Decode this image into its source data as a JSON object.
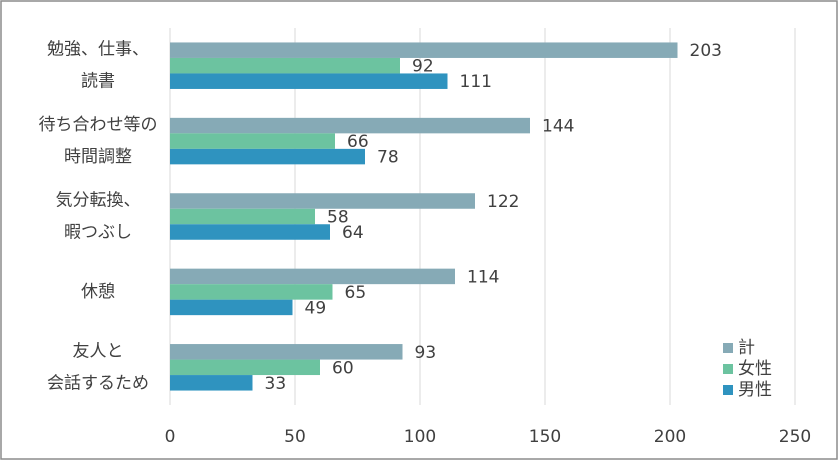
{
  "chart_data": {
    "type": "hbar",
    "categories": [
      [
        "勉強、仕事、",
        "読書"
      ],
      [
        "待ち合わせ等の",
        "時間調整"
      ],
      [
        "気分転換、",
        "暇つぶし"
      ],
      [
        "休憩"
      ],
      [
        "友人と",
        "会話するため"
      ]
    ],
    "series": [
      {
        "name": "計",
        "color": "#86aab6",
        "values": [
          203,
          144,
          122,
          114,
          93
        ]
      },
      {
        "name": "女性",
        "color": "#6cc3a0",
        "values": [
          92,
          66,
          58,
          65,
          60
        ]
      },
      {
        "name": "男性",
        "color": "#2f93bf",
        "values": [
          111,
          78,
          64,
          49,
          33
        ]
      }
    ],
    "xlim": [
      0,
      250
    ],
    "xticks": [
      0,
      50,
      100,
      150,
      200,
      250
    ],
    "grid": true,
    "legend": "lower right"
  }
}
